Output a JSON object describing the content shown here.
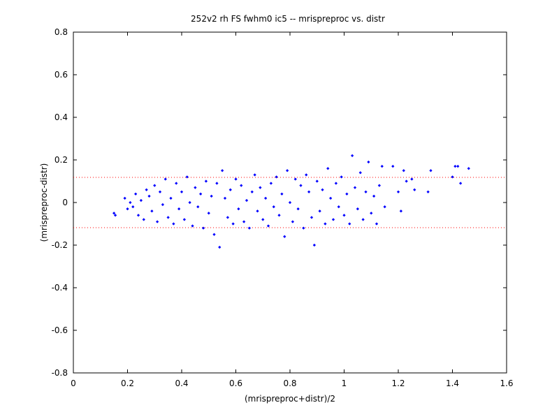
{
  "chart_data": {
    "type": "scatter",
    "title": "252v2 rh FS fwhm0 ic5 -- mrispreproc vs. distr",
    "xlabel": "(mrispreproc+distr)/2",
    "ylabel": "(mrispreproc-distr)",
    "xlim": [
      0,
      1.6
    ],
    "ylim": [
      -0.8,
      0.8
    ],
    "x_ticks": [
      0,
      0.2,
      0.4,
      0.6,
      0.8,
      1.0,
      1.2,
      1.4,
      1.6
    ],
    "x_tick_labels": [
      "0",
      "0.2",
      "0.4",
      "0.6",
      "0.8",
      "1",
      "1.2",
      "1.4",
      "1.6"
    ],
    "y_ticks": [
      -0.8,
      -0.6,
      -0.4,
      -0.2,
      0,
      0.2,
      0.4,
      0.6,
      0.8
    ],
    "y_tick_labels": [
      "-0.8",
      "-0.6",
      "-0.4",
      "-0.2",
      "0",
      "0.2",
      "0.4",
      "0.6",
      "0.8"
    ],
    "grid": false,
    "reference_lines": [
      {
        "y": 0.118,
        "style": "dotted",
        "color": "#ff0000"
      },
      {
        "y": -0.118,
        "style": "dotted",
        "color": "#ff0000"
      }
    ],
    "marker_color": "#0000ff",
    "series": [
      {
        "marker": "dot",
        "points": [
          [
            0.15,
            -0.05
          ],
          [
            0.155,
            -0.06
          ],
          [
            0.19,
            0.02
          ],
          [
            0.2,
            -0.03
          ],
          [
            0.21,
            0.0
          ],
          [
            0.22,
            -0.02
          ],
          [
            0.23,
            0.04
          ],
          [
            0.24,
            -0.06
          ],
          [
            0.25,
            0.01
          ],
          [
            0.26,
            -0.08
          ],
          [
            0.27,
            0.06
          ],
          [
            0.28,
            0.03
          ],
          [
            0.29,
            -0.04
          ],
          [
            0.3,
            0.08
          ],
          [
            0.31,
            -0.09
          ],
          [
            0.32,
            0.05
          ],
          [
            0.33,
            -0.01
          ],
          [
            0.34,
            0.11
          ],
          [
            0.35,
            -0.07
          ],
          [
            0.36,
            0.02
          ],
          [
            0.37,
            -0.1
          ],
          [
            0.38,
            0.09
          ],
          [
            0.39,
            -0.03
          ],
          [
            0.4,
            0.05
          ],
          [
            0.41,
            -0.08
          ],
          [
            0.42,
            0.12
          ],
          [
            0.43,
            0.0
          ],
          [
            0.44,
            -0.11
          ],
          [
            0.45,
            0.07
          ],
          [
            0.46,
            -0.02
          ],
          [
            0.47,
            0.04
          ],
          [
            0.48,
            -0.12
          ],
          [
            0.49,
            0.1
          ],
          [
            0.5,
            -0.05
          ],
          [
            0.51,
            0.03
          ],
          [
            0.52,
            -0.15
          ],
          [
            0.53,
            0.09
          ],
          [
            0.54,
            -0.21
          ],
          [
            0.55,
            0.15
          ],
          [
            0.56,
            0.02
          ],
          [
            0.57,
            -0.07
          ],
          [
            0.58,
            0.06
          ],
          [
            0.59,
            -0.1
          ],
          [
            0.6,
            0.11
          ],
          [
            0.61,
            -0.03
          ],
          [
            0.62,
            0.08
          ],
          [
            0.63,
            -0.09
          ],
          [
            0.64,
            0.01
          ],
          [
            0.65,
            -0.12
          ],
          [
            0.66,
            0.05
          ],
          [
            0.67,
            0.13
          ],
          [
            0.68,
            -0.04
          ],
          [
            0.69,
            0.07
          ],
          [
            0.7,
            -0.08
          ],
          [
            0.71,
            0.02
          ],
          [
            0.72,
            -0.11
          ],
          [
            0.73,
            0.09
          ],
          [
            0.74,
            -0.02
          ],
          [
            0.75,
            0.12
          ],
          [
            0.76,
            -0.06
          ],
          [
            0.77,
            0.04
          ],
          [
            0.78,
            -0.16
          ],
          [
            0.79,
            0.15
          ],
          [
            0.8,
            0.0
          ],
          [
            0.81,
            -0.09
          ],
          [
            0.82,
            0.11
          ],
          [
            0.83,
            -0.03
          ],
          [
            0.84,
            0.08
          ],
          [
            0.85,
            -0.12
          ],
          [
            0.86,
            0.13
          ],
          [
            0.87,
            0.05
          ],
          [
            0.88,
            -0.07
          ],
          [
            0.89,
            -0.2
          ],
          [
            0.9,
            0.1
          ],
          [
            0.91,
            -0.04
          ],
          [
            0.92,
            0.06
          ],
          [
            0.93,
            -0.1
          ],
          [
            0.94,
            0.16
          ],
          [
            0.95,
            0.02
          ],
          [
            0.96,
            -0.08
          ],
          [
            0.97,
            0.09
          ],
          [
            0.98,
            -0.02
          ],
          [
            0.99,
            0.12
          ],
          [
            1.0,
            -0.06
          ],
          [
            1.01,
            0.04
          ],
          [
            1.02,
            -0.1
          ],
          [
            1.03,
            0.22
          ],
          [
            1.04,
            0.07
          ],
          [
            1.05,
            -0.03
          ],
          [
            1.06,
            0.14
          ],
          [
            1.07,
            -0.08
          ],
          [
            1.08,
            0.05
          ],
          [
            1.09,
            0.19
          ],
          [
            1.1,
            -0.05
          ],
          [
            1.11,
            0.03
          ],
          [
            1.12,
            -0.1
          ],
          [
            1.13,
            0.08
          ],
          [
            1.14,
            0.17
          ],
          [
            1.15,
            -0.02
          ],
          [
            1.18,
            0.17
          ],
          [
            1.2,
            0.05
          ],
          [
            1.21,
            -0.04
          ],
          [
            1.22,
            0.15
          ],
          [
            1.23,
            0.1
          ],
          [
            1.25,
            0.11
          ],
          [
            1.26,
            0.06
          ],
          [
            1.31,
            0.05
          ],
          [
            1.32,
            0.15
          ],
          [
            1.4,
            0.12
          ],
          [
            1.41,
            0.17
          ],
          [
            1.42,
            0.17
          ],
          [
            1.43,
            0.09
          ],
          [
            1.46,
            0.16
          ]
        ]
      }
    ]
  }
}
